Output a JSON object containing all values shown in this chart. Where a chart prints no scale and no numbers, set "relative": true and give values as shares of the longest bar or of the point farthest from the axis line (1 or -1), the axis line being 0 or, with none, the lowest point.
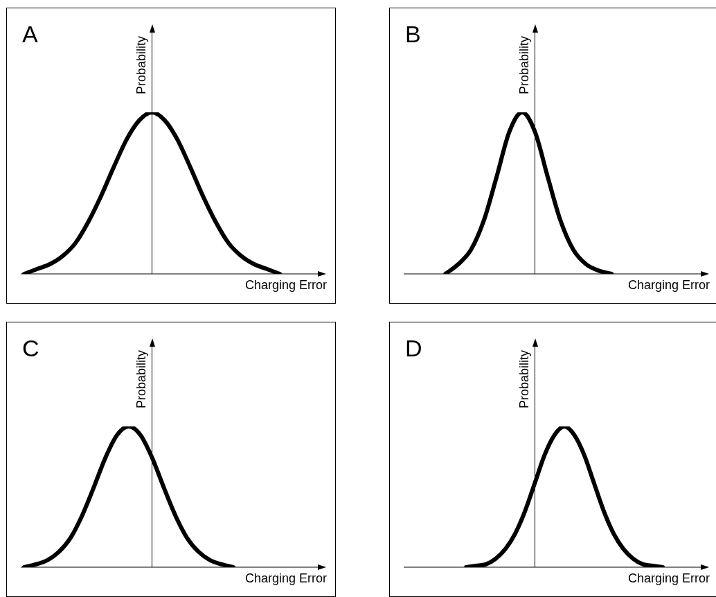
{
  "chart_data": [
    {
      "type": "line",
      "title": "A",
      "xlabel": "Charging Error",
      "ylabel": "Probability",
      "relative": true,
      "marker": "none",
      "line_style": "solid",
      "categories": [
        null,
        null,
        null,
        null,
        null,
        null,
        null,
        null,
        null,
        null,
        null,
        null,
        null,
        null,
        null,
        null,
        null,
        null,
        null,
        null,
        null
      ],
      "series": [
        {
          "color": "#000000",
          "values": [
            0,
            0.03,
            0.06,
            0.11,
            0.19,
            0.32,
            0.48,
            0.66,
            0.83,
            0.95,
            1,
            0.95,
            0.83,
            0.66,
            0.48,
            0.32,
            0.19,
            0.11,
            0.06,
            0.03,
            0
          ]
        }
      ]
    },
    {
      "type": "line",
      "title": "B",
      "xlabel": "Charging Error",
      "ylabel": "Probability",
      "relative": true,
      "marker": "none",
      "line_style": "solid",
      "categories": [
        null,
        null,
        null,
        null,
        null,
        null,
        null,
        null,
        null,
        null,
        null,
        null,
        null,
        null,
        null,
        null,
        null,
        null,
        null,
        null,
        null
      ],
      "series": [
        {
          "color": "#000000",
          "values": [
            null,
            null,
            null,
            0,
            0.06,
            0.15,
            0.33,
            0.6,
            0.88,
            1,
            0.88,
            0.6,
            0.33,
            0.15,
            0.06,
            0.02,
            0,
            null,
            null,
            null,
            null
          ]
        }
      ]
    },
    {
      "type": "line",
      "title": "C",
      "xlabel": "Charging Error",
      "ylabel": "Probability",
      "relative": true,
      "marker": "none",
      "line_style": "solid",
      "categories": [
        null,
        null,
        null,
        null,
        null,
        null,
        null,
        null,
        null,
        null,
        null,
        null,
        null,
        null,
        null,
        null,
        null,
        null,
        null,
        null,
        null,
        null,
        null
      ],
      "series": [
        {
          "color": "#000000",
          "values": [
            0,
            0.02,
            0.05,
            0.11,
            0.21,
            0.37,
            0.57,
            0.78,
            0.94,
            1,
            0.94,
            0.78,
            0.57,
            0.37,
            0.21,
            0.11,
            0.05,
            0.02,
            0,
            null,
            null,
            null,
            null
          ]
        }
      ]
    },
    {
      "type": "line",
      "title": "D",
      "xlabel": "Charging Error",
      "ylabel": "Probability",
      "relative": true,
      "marker": "none",
      "line_style": "solid",
      "categories": [
        null,
        null,
        null,
        null,
        null,
        null,
        null,
        null,
        null,
        null,
        null,
        null,
        null,
        null,
        null,
        null,
        null,
        null,
        null,
        null,
        null,
        null,
        null,
        null,
        null,
        null,
        null
      ],
      "series": [
        {
          "color": "#000000",
          "values": [
            null,
            null,
            null,
            null,
            null,
            null,
            0,
            0.01,
            0.02,
            0.06,
            0.13,
            0.24,
            0.4,
            0.6,
            0.8,
            0.94,
            1,
            0.94,
            0.8,
            0.6,
            0.4,
            0.24,
            0.13,
            0.06,
            0.02,
            0.01,
            0
          ]
        }
      ]
    }
  ]
}
